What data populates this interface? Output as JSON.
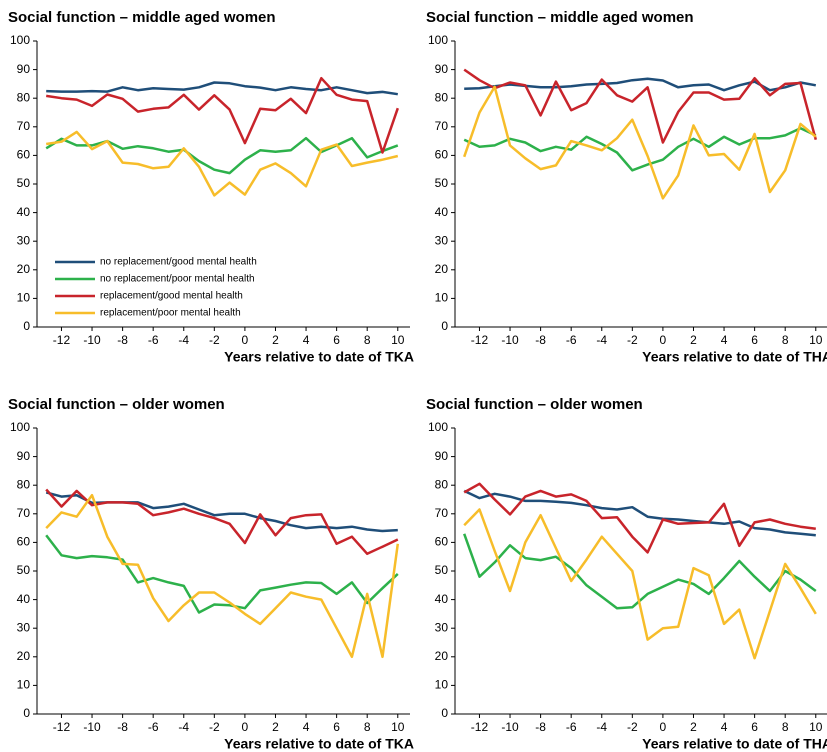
{
  "chart_data": [
    {
      "type": "line",
      "title": "Social function – middle aged women",
      "x_label": "Years relative to date of TKA",
      "x": [
        -13,
        -12,
        -11,
        -10,
        -9,
        -8,
        -7,
        -6,
        -5,
        -4,
        -3,
        -2,
        -1,
        0,
        1,
        2,
        3,
        4,
        5,
        6,
        7,
        8,
        9,
        10
      ],
      "xlim": [
        -13.6,
        10.8
      ],
      "xticks": [
        -12,
        -10,
        -8,
        -6,
        -4,
        -2,
        0,
        2,
        4,
        6,
        8,
        10
      ],
      "ylim": [
        0,
        100
      ],
      "yticks": [
        0,
        10,
        20,
        30,
        40,
        50,
        60,
        70,
        80,
        90,
        100
      ],
      "legend": true,
      "series": [
        {
          "name": "no replacement/good mental health",
          "color": "#1f4e79",
          "values": [
            82.5,
            82.3,
            82.3,
            82.5,
            82.3,
            83.8,
            82.8,
            83.5,
            83.2,
            83.0,
            83.8,
            85.5,
            85.2,
            84.2,
            83.7,
            82.8,
            83.8,
            83.2,
            82.8,
            83.8,
            82.8,
            81.8,
            82.2,
            81.4
          ]
        },
        {
          "name": "no replacement/poor mental health",
          "color": "#2db14b",
          "values": [
            62.5,
            65.8,
            63.5,
            63.5,
            65.0,
            62.3,
            63.2,
            62.5,
            61.3,
            62.0,
            58.0,
            55.0,
            53.8,
            58.5,
            61.8,
            61.3,
            61.8,
            66.0,
            61.2,
            63.5,
            66.0,
            59.3,
            61.5,
            63.5
          ]
        },
        {
          "name": "replacement/good mental health",
          "color": "#c8242b",
          "values": [
            80.8,
            80.0,
            79.5,
            77.3,
            81.3,
            79.8,
            75.3,
            76.3,
            76.8,
            81.2,
            76.0,
            81.0,
            76.0,
            64.3,
            76.3,
            75.8,
            79.8,
            74.8,
            87.0,
            81.2,
            79.5,
            79.0,
            61.0,
            76.5
          ]
        },
        {
          "name": "replacement/poor mental health",
          "color": "#f7bd2a",
          "values": [
            64.0,
            64.8,
            68.2,
            62.2,
            65.0,
            57.5,
            57.0,
            55.5,
            56.0,
            62.5,
            56.0,
            46.0,
            50.5,
            46.3,
            55.0,
            57.2,
            53.8,
            49.2,
            62.0,
            63.8,
            56.3,
            57.5,
            58.5,
            59.8
          ]
        }
      ]
    },
    {
      "type": "line",
      "title": "Social function – middle aged women",
      "x_label": "Years relative to date of THA",
      "x": [
        -13,
        -12,
        -11,
        -10,
        -9,
        -8,
        -7,
        -6,
        -5,
        -4,
        -3,
        -2,
        -1,
        0,
        1,
        2,
        3,
        4,
        5,
        6,
        7,
        8,
        9,
        10
      ],
      "xlim": [
        -13.6,
        10.8
      ],
      "xticks": [
        -12,
        -10,
        -8,
        -6,
        -4,
        -2,
        0,
        2,
        4,
        6,
        8,
        10
      ],
      "ylim": [
        0,
        100
      ],
      "yticks": [
        0,
        10,
        20,
        30,
        40,
        50,
        60,
        70,
        80,
        90,
        100
      ],
      "legend": false,
      "series": [
        {
          "color": "#1f4e79",
          "values": [
            83.3,
            83.5,
            84.2,
            84.8,
            84.3,
            83.8,
            83.8,
            84.2,
            84.8,
            85.0,
            85.3,
            86.3,
            86.8,
            86.2,
            83.8,
            84.5,
            84.8,
            82.8,
            84.5,
            85.8,
            82.8,
            83.8,
            85.5,
            84.5
          ]
        },
        {
          "color": "#2db14b",
          "values": [
            65.5,
            63.0,
            63.5,
            65.8,
            64.5,
            61.5,
            63.0,
            62.0,
            66.5,
            64.0,
            61.0,
            54.8,
            56.8,
            58.5,
            63.0,
            65.8,
            63.0,
            66.5,
            63.8,
            66.0,
            66.0,
            67.0,
            69.5,
            67.0
          ]
        },
        {
          "color": "#c8242b",
          "values": [
            90.0,
            86.3,
            83.5,
            85.5,
            84.5,
            74.0,
            85.8,
            75.8,
            78.3,
            86.5,
            81.0,
            78.8,
            83.8,
            64.5,
            75.2,
            82.0,
            82.0,
            79.5,
            79.8,
            87.0,
            81.0,
            85.0,
            85.3,
            65.5
          ]
        },
        {
          "color": "#f7bd2a",
          "values": [
            59.5,
            75.0,
            84.0,
            63.5,
            59.0,
            55.2,
            56.5,
            65.0,
            63.5,
            61.8,
            66.0,
            72.5,
            59.8,
            45.0,
            53.0,
            70.5,
            60.0,
            60.5,
            55.0,
            67.5,
            47.2,
            54.8,
            71.0,
            66.5
          ]
        }
      ]
    },
    {
      "type": "line",
      "title": "Social function – older women",
      "x_label": "Years relative to date of TKA",
      "x": [
        -13,
        -12,
        -11,
        -10,
        -9,
        -8,
        -7,
        -6,
        -5,
        -4,
        -3,
        -2,
        -1,
        0,
        1,
        2,
        3,
        4,
        5,
        6,
        7,
        8,
        9,
        10
      ],
      "xlim": [
        -13.6,
        10.8
      ],
      "xticks": [
        -12,
        -10,
        -8,
        -6,
        -4,
        -2,
        0,
        2,
        4,
        6,
        8,
        10
      ],
      "ylim": [
        0,
        100
      ],
      "yticks": [
        0,
        10,
        20,
        30,
        40,
        50,
        60,
        70,
        80,
        90,
        100
      ],
      "legend": false,
      "series": [
        {
          "color": "#1f4e79",
          "values": [
            77.5,
            76.0,
            76.5,
            73.8,
            74.0,
            74.0,
            74.0,
            72.0,
            72.5,
            73.5,
            71.5,
            69.5,
            70.0,
            70.0,
            68.5,
            67.5,
            66.0,
            65.0,
            65.5,
            65.0,
            65.5,
            64.5,
            64.0,
            64.3
          ]
        },
        {
          "color": "#2db14b",
          "values": [
            62.5,
            55.5,
            54.5,
            55.2,
            54.8,
            54.0,
            46.0,
            47.5,
            46.0,
            44.8,
            35.5,
            38.3,
            38.0,
            37.0,
            43.2,
            44.2,
            45.2,
            46.0,
            45.8,
            42.0,
            46.0,
            38.8,
            44.0,
            49.0
          ]
        },
        {
          "color": "#c8242b",
          "values": [
            78.5,
            72.5,
            78.0,
            73.0,
            74.0,
            74.0,
            73.5,
            69.5,
            70.5,
            71.8,
            70.0,
            68.5,
            66.5,
            59.8,
            69.8,
            62.5,
            68.5,
            69.5,
            69.8,
            59.5,
            62.0,
            56.0,
            58.5,
            61.0
          ]
        },
        {
          "color": "#f7bd2a",
          "values": [
            65.0,
            70.5,
            69.0,
            76.5,
            62.0,
            52.5,
            52.2,
            40.5,
            32.5,
            38.0,
            42.5,
            42.5,
            39.0,
            35.0,
            31.5,
            37.0,
            42.5,
            41.0,
            40.0,
            30.0,
            20.0,
            42.0,
            20.0,
            59.5
          ]
        }
      ]
    },
    {
      "type": "line",
      "title": "Social function – older women",
      "x_label": "Years relative to date of THA",
      "x": [
        -13,
        -12,
        -11,
        -10,
        -9,
        -8,
        -7,
        -6,
        -5,
        -4,
        -3,
        -2,
        -1,
        0,
        1,
        2,
        3,
        4,
        5,
        6,
        7,
        8,
        9,
        10
      ],
      "xlim": [
        -13.6,
        10.8
      ],
      "xticks": [
        -12,
        -10,
        -8,
        -6,
        -4,
        -2,
        0,
        2,
        4,
        6,
        8,
        10
      ],
      "ylim": [
        0,
        100
      ],
      "yticks": [
        0,
        10,
        20,
        30,
        40,
        50,
        60,
        70,
        80,
        90,
        100
      ],
      "legend": false,
      "series": [
        {
          "color": "#1f4e79",
          "values": [
            78.0,
            75.5,
            77.0,
            76.0,
            74.5,
            74.5,
            74.2,
            73.8,
            73.0,
            72.0,
            71.5,
            72.3,
            69.0,
            68.3,
            68.0,
            67.5,
            67.0,
            66.5,
            67.3,
            65.0,
            64.5,
            63.5,
            63.0,
            62.5
          ]
        },
        {
          "color": "#2db14b",
          "values": [
            63.0,
            48.0,
            53.0,
            59.0,
            54.5,
            53.8,
            55.0,
            51.0,
            45.0,
            41.0,
            37.0,
            37.3,
            42.0,
            44.5,
            47.0,
            45.5,
            42.0,
            47.5,
            53.5,
            48.0,
            43.0,
            50.0,
            47.0,
            43.0
          ]
        },
        {
          "color": "#c8242b",
          "values": [
            77.5,
            80.5,
            75.0,
            69.8,
            76.0,
            78.0,
            76.0,
            76.8,
            74.5,
            68.5,
            68.8,
            62.0,
            56.5,
            68.0,
            66.5,
            66.8,
            67.0,
            73.5,
            58.8,
            67.0,
            68.0,
            66.5,
            65.5,
            64.8
          ]
        },
        {
          "color": "#f7bd2a",
          "values": [
            66.0,
            71.5,
            57.0,
            43.0,
            60.0,
            69.5,
            58.0,
            46.5,
            54.0,
            62.0,
            56.0,
            50.0,
            26.0,
            30.0,
            30.5,
            51.0,
            48.5,
            31.5,
            36.5,
            19.5,
            36.0,
            52.5,
            44.0,
            35.0
          ]
        }
      ]
    }
  ]
}
